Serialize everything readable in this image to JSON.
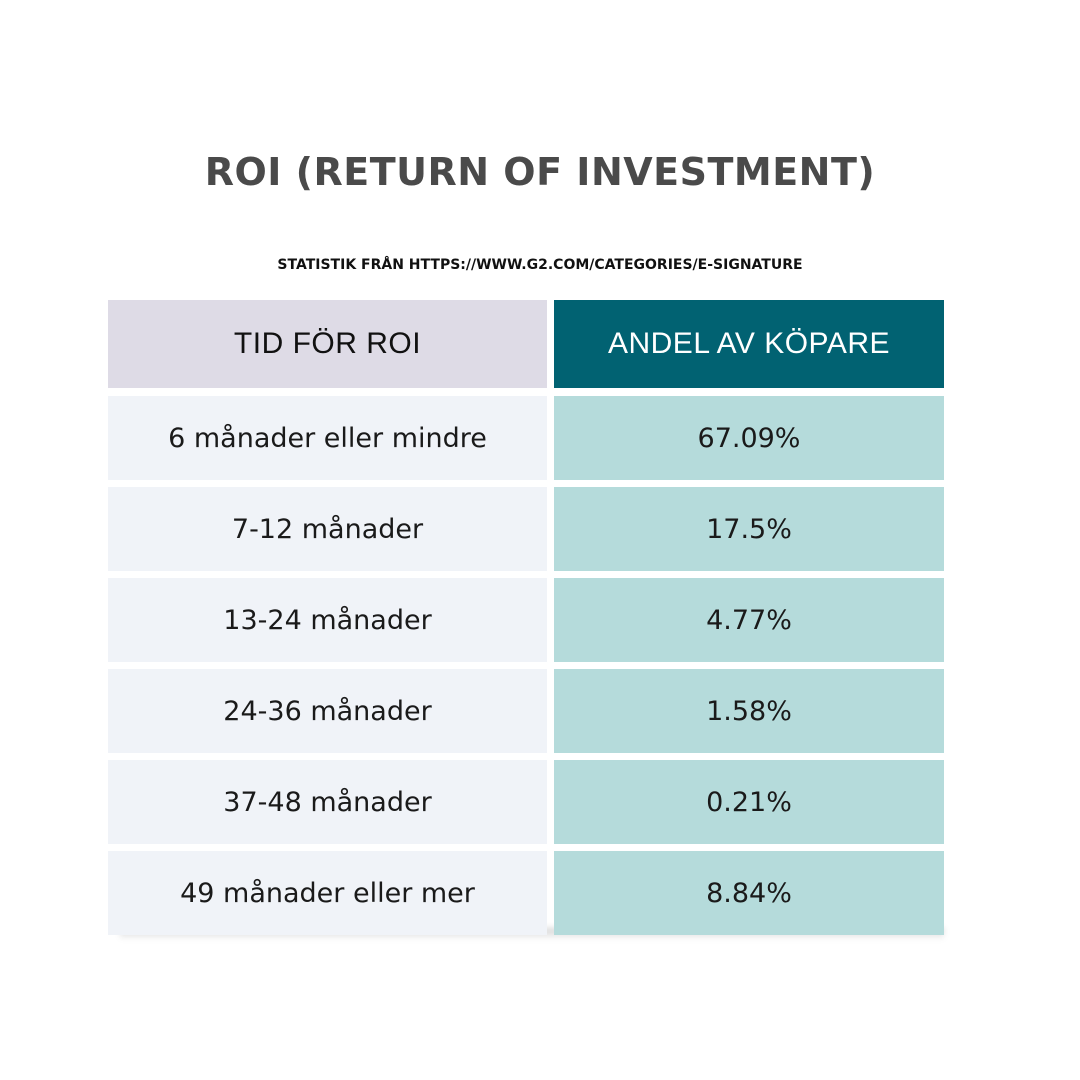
{
  "title": "ROI (RETURN OF INVESTMENT)",
  "subtitle": "STATISTIK FRÅN HTTPS://WWW.G2.COM/CATEGORIES/E-SIGNATURE",
  "colors": {
    "header_left_bg": "#dedbe6",
    "header_right_bg": "#016272",
    "body_left_bg": "#f0f3f8",
    "body_right_bg": "#b5dbdb",
    "title_color": "#4a4a4a"
  },
  "chart_data": {
    "type": "table",
    "title": "ROI (RETURN OF INVESTMENT)",
    "subtitle": "STATISTIK FRÅN HTTPS://WWW.G2.COM/CATEGORIES/E-SIGNATURE",
    "columns": [
      "TID FÖR ROI",
      "ANDEL AV KÖPARE"
    ],
    "rows": [
      [
        "6 månader eller mindre",
        "67.09%"
      ],
      [
        "7-12 månader",
        "17.5%"
      ],
      [
        "13-24 månader",
        "4.77%"
      ],
      [
        "24-36 månader",
        "1.58%"
      ],
      [
        "37-48 månader",
        "0.21%"
      ],
      [
        "49 månader eller mer",
        "8.84%"
      ]
    ]
  }
}
